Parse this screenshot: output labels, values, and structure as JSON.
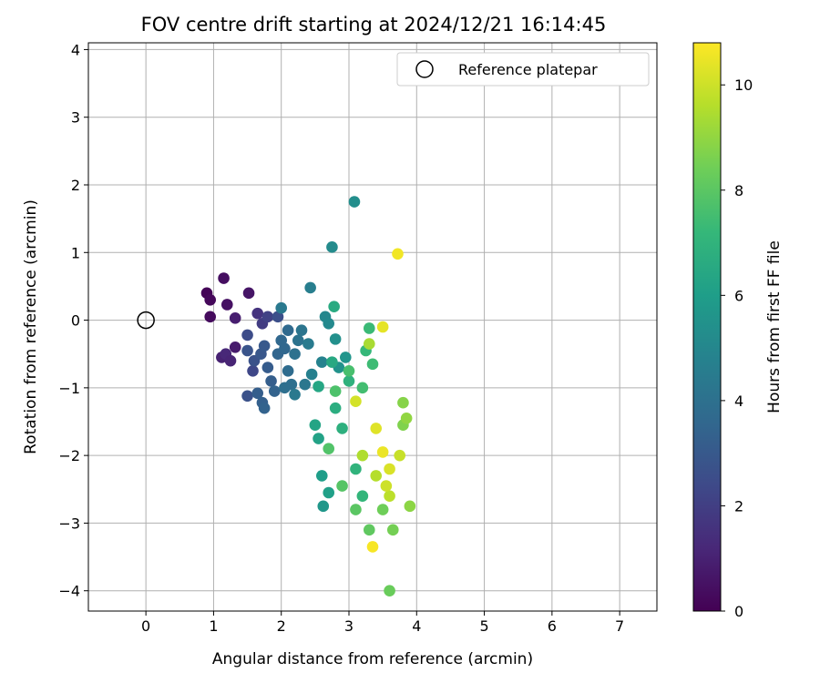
{
  "chart_data": {
    "type": "scatter",
    "title": "FOV centre drift starting at 2024/12/21 16:14:45",
    "xlabel": "Angular distance from reference (arcmin)",
    "ylabel": "Rotation from reference (arcmin)",
    "xlim": [
      -0.85,
      7.55
    ],
    "ylim": [
      -4.3,
      4.1
    ],
    "xticks": [
      0,
      1,
      2,
      3,
      4,
      5,
      6,
      7
    ],
    "yticks": [
      -4,
      -3,
      -2,
      -1,
      0,
      1,
      2,
      3,
      4
    ],
    "grid": true,
    "legend": {
      "placement": "top-right",
      "entries": [
        "Reference platepar"
      ]
    },
    "reference_point": {
      "x": 0,
      "y": 0,
      "label": "Reference platepar",
      "marker": "open-circle"
    },
    "colorbar": {
      "label": "Hours from first FF file",
      "range": [
        0,
        10.8
      ],
      "ticks": [
        0,
        2,
        4,
        6,
        8,
        10
      ],
      "colormap": "viridis"
    },
    "colormap_stops": [
      "#440154",
      "#482878",
      "#3e4a89",
      "#31688e",
      "#26828e",
      "#1f9e89",
      "#35b779",
      "#6ece58",
      "#b5de2b",
      "#fde725"
    ],
    "points": [
      {
        "x": 0.9,
        "y": 0.4,
        "t": 0.1
      },
      {
        "x": 0.95,
        "y": 0.3,
        "t": 0.2
      },
      {
        "x": 0.95,
        "y": 0.05,
        "t": 0.3
      },
      {
        "x": 1.15,
        "y": 0.62,
        "t": 0.4
      },
      {
        "x": 1.2,
        "y": 0.23,
        "t": 0.5
      },
      {
        "x": 1.52,
        "y": 0.4,
        "t": 0.6
      },
      {
        "x": 1.32,
        "y": 0.03,
        "t": 0.9
      },
      {
        "x": 1.32,
        "y": -0.4,
        "t": 0.8
      },
      {
        "x": 1.12,
        "y": -0.55,
        "t": 1.0
      },
      {
        "x": 1.18,
        "y": -0.5,
        "t": 1.2
      },
      {
        "x": 1.25,
        "y": -0.6,
        "t": 1.1
      },
      {
        "x": 1.65,
        "y": 0.1,
        "t": 1.6
      },
      {
        "x": 1.72,
        "y": -0.05,
        "t": 1.9
      },
      {
        "x": 1.8,
        "y": 0.05,
        "t": 2.1
      },
      {
        "x": 1.95,
        "y": 0.05,
        "t": 2.6
      },
      {
        "x": 1.5,
        "y": -0.22,
        "t": 2.5
      },
      {
        "x": 1.58,
        "y": -0.75,
        "t": 2.3
      },
      {
        "x": 1.6,
        "y": -0.6,
        "t": 2.7
      },
      {
        "x": 1.5,
        "y": -1.12,
        "t": 2.7
      },
      {
        "x": 1.5,
        "y": -0.45,
        "t": 2.8
      },
      {
        "x": 1.7,
        "y": -0.5,
        "t": 2.9
      },
      {
        "x": 1.75,
        "y": -0.38,
        "t": 3.0
      },
      {
        "x": 1.8,
        "y": -0.7,
        "t": 3.1
      },
      {
        "x": 1.85,
        "y": -0.9,
        "t": 3.2
      },
      {
        "x": 1.65,
        "y": -1.08,
        "t": 3.2
      },
      {
        "x": 1.72,
        "y": -1.22,
        "t": 3.3
      },
      {
        "x": 1.75,
        "y": -1.3,
        "t": 3.4
      },
      {
        "x": 1.9,
        "y": -1.05,
        "t": 3.4
      },
      {
        "x": 1.95,
        "y": -0.5,
        "t": 3.5
      },
      {
        "x": 2.0,
        "y": -0.3,
        "t": 3.6
      },
      {
        "x": 2.05,
        "y": -0.42,
        "t": 3.6
      },
      {
        "x": 2.1,
        "y": -0.15,
        "t": 3.7
      },
      {
        "x": 2.1,
        "y": -0.75,
        "t": 3.8
      },
      {
        "x": 2.15,
        "y": -0.95,
        "t": 3.9
      },
      {
        "x": 2.05,
        "y": -1.0,
        "t": 3.9
      },
      {
        "x": 2.2,
        "y": -0.5,
        "t": 4.0
      },
      {
        "x": 2.25,
        "y": -0.3,
        "t": 4.1
      },
      {
        "x": 2.3,
        "y": -0.15,
        "t": 4.2
      },
      {
        "x": 2.35,
        "y": -0.95,
        "t": 4.3
      },
      {
        "x": 2.2,
        "y": -1.1,
        "t": 4.4
      },
      {
        "x": 2.0,
        "y": 0.18,
        "t": 4.4
      },
      {
        "x": 2.4,
        "y": -0.35,
        "t": 4.5
      },
      {
        "x": 2.43,
        "y": 0.48,
        "t": 4.6
      },
      {
        "x": 2.45,
        "y": -0.8,
        "t": 4.7
      },
      {
        "x": 2.6,
        "y": -0.62,
        "t": 4.8
      },
      {
        "x": 2.65,
        "y": 0.05,
        "t": 5.0
      },
      {
        "x": 2.7,
        "y": -0.05,
        "t": 5.1
      },
      {
        "x": 2.75,
        "y": 1.08,
        "t": 5.2
      },
      {
        "x": 3.08,
        "y": 1.75,
        "t": 5.3
      },
      {
        "x": 2.8,
        "y": -0.28,
        "t": 5.4
      },
      {
        "x": 2.85,
        "y": -0.7,
        "t": 5.5
      },
      {
        "x": 2.95,
        "y": -0.55,
        "t": 5.6
      },
      {
        "x": 2.62,
        "y": -2.75,
        "t": 5.7
      },
      {
        "x": 2.6,
        "y": -2.3,
        "t": 6.0
      },
      {
        "x": 2.7,
        "y": -2.55,
        "t": 6.1
      },
      {
        "x": 2.55,
        "y": -1.75,
        "t": 6.2
      },
      {
        "x": 2.5,
        "y": -1.55,
        "t": 6.3
      },
      {
        "x": 2.55,
        "y": -0.98,
        "t": 6.4
      },
      {
        "x": 2.75,
        "y": -0.62,
        "t": 6.5
      },
      {
        "x": 2.78,
        "y": 0.2,
        "t": 6.6
      },
      {
        "x": 2.8,
        "y": -1.3,
        "t": 6.7
      },
      {
        "x": 2.9,
        "y": -1.6,
        "t": 6.8
      },
      {
        "x": 3.0,
        "y": -0.9,
        "t": 6.9
      },
      {
        "x": 3.1,
        "y": -2.2,
        "t": 7.0
      },
      {
        "x": 3.2,
        "y": -2.6,
        "t": 7.1
      },
      {
        "x": 3.25,
        "y": -0.45,
        "t": 7.2
      },
      {
        "x": 3.3,
        "y": -0.12,
        "t": 7.3
      },
      {
        "x": 3.35,
        "y": -0.65,
        "t": 7.4
      },
      {
        "x": 3.2,
        "y": -1.0,
        "t": 7.5
      },
      {
        "x": 3.0,
        "y": -0.75,
        "t": 7.6
      },
      {
        "x": 2.8,
        "y": -1.05,
        "t": 7.7
      },
      {
        "x": 2.7,
        "y": -1.9,
        "t": 7.8
      },
      {
        "x": 2.9,
        "y": -2.45,
        "t": 7.9
      },
      {
        "x": 3.1,
        "y": -2.8,
        "t": 8.0
      },
      {
        "x": 3.3,
        "y": -3.1,
        "t": 8.1
      },
      {
        "x": 3.6,
        "y": -4.0,
        "t": 8.3
      },
      {
        "x": 3.5,
        "y": -2.8,
        "t": 8.4
      },
      {
        "x": 3.65,
        "y": -3.1,
        "t": 8.5
      },
      {
        "x": 3.8,
        "y": -1.55,
        "t": 8.7
      },
      {
        "x": 3.8,
        "y": -1.22,
        "t": 8.8
      },
      {
        "x": 3.9,
        "y": -2.75,
        "t": 8.9
      },
      {
        "x": 3.85,
        "y": -1.45,
        "t": 9.0
      },
      {
        "x": 3.3,
        "y": -0.35,
        "t": 9.4
      },
      {
        "x": 3.2,
        "y": -2.0,
        "t": 9.5
      },
      {
        "x": 3.4,
        "y": -2.3,
        "t": 9.6
      },
      {
        "x": 3.6,
        "y": -2.6,
        "t": 9.7
      },
      {
        "x": 3.75,
        "y": -2.0,
        "t": 9.9
      },
      {
        "x": 3.1,
        "y": -1.2,
        "t": 10.1
      },
      {
        "x": 3.5,
        "y": -0.1,
        "t": 10.4
      },
      {
        "x": 3.72,
        "y": 0.98,
        "t": 10.6
      },
      {
        "x": 3.35,
        "y": -3.35,
        "t": 10.7
      },
      {
        "x": 3.4,
        "y": -1.6,
        "t": 10.3
      },
      {
        "x": 3.5,
        "y": -1.95,
        "t": 10.5
      },
      {
        "x": 3.6,
        "y": -2.2,
        "t": 10.2
      },
      {
        "x": 3.55,
        "y": -2.45,
        "t": 10.0
      }
    ]
  }
}
